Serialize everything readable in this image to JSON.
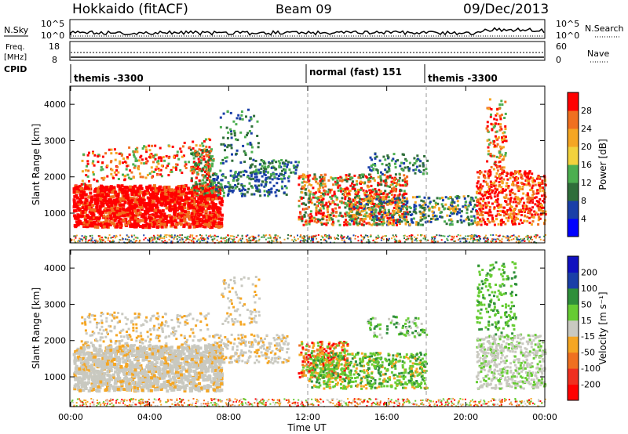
{
  "header": {
    "title": "Hokkaido (fitACF)",
    "beam": "Beam 09",
    "date": "09/Dec/2013"
  },
  "panels": {
    "nsky": {
      "label": "N.Sky",
      "tick_top": "10^5",
      "tick_bottom": "10^0",
      "right_label": "N.Search",
      "right_tick_top": "10^5",
      "right_tick_bottom": "10^0"
    },
    "freq": {
      "label_line1": "Freq.",
      "label_line2": "[MHz]",
      "tick_top": "18",
      "tick_bottom": "8",
      "right_label": "Nave",
      "right_tick_top": "60",
      "right_tick_bottom": "0"
    },
    "cpid": {
      "label": "CPID",
      "segments": [
        "themis -3300",
        "normal (fast) 151",
        "themis -3300"
      ]
    }
  },
  "colors": {
    "power_scale": [
      "#0000ff",
      "#1a3fa8",
      "#2f6e3a",
      "#4caf50",
      "#f2d23d",
      "#f5a623",
      "#f07020",
      "#ff0000"
    ],
    "velocity_scale": [
      "#ff0000",
      "#f03020",
      "#f07020",
      "#f5a623",
      "#c9c9c0",
      "#66cc33",
      "#2f8f3a",
      "#1a3fa8",
      "#1010c0"
    ]
  },
  "chart_data": [
    {
      "type": "heatmap",
      "title": "",
      "xlabel": "Time UT",
      "ylabel": "Slant Range [km]",
      "xlim": [
        "00:00",
        "00:00"
      ],
      "x_ticks": [
        "00:00",
        "04:00",
        "08:00",
        "12:00",
        "16:00",
        "20:00",
        "00:00"
      ],
      "ylim": [
        180,
        4500
      ],
      "y_ticks": [
        1000,
        2000,
        3000,
        4000
      ],
      "colorbar": {
        "label": "Power [dB]",
        "ticks": [
          4,
          8,
          12,
          16,
          20,
          24,
          28
        ]
      },
      "dashed_lines_x": [
        "12:00",
        "18:00"
      ]
    },
    {
      "type": "heatmap",
      "title": "",
      "xlabel": "Time UT",
      "ylabel": "Slant Range [km]",
      "xlim": [
        "00:00",
        "00:00"
      ],
      "x_ticks": [
        "00:00",
        "04:00",
        "08:00",
        "12:00",
        "16:00",
        "20:00",
        "00:00"
      ],
      "ylim": [
        180,
        4500
      ],
      "y_ticks": [
        1000,
        2000,
        3000,
        4000
      ],
      "colorbar": {
        "label": "Velocity [m s⁻¹]",
        "ticks": [
          200,
          100,
          50,
          15,
          -15,
          -50,
          -100,
          -200
        ]
      },
      "dashed_lines_x": [
        "12:00",
        "18:00"
      ]
    }
  ],
  "axis": {
    "xlabel": "Time UT"
  }
}
